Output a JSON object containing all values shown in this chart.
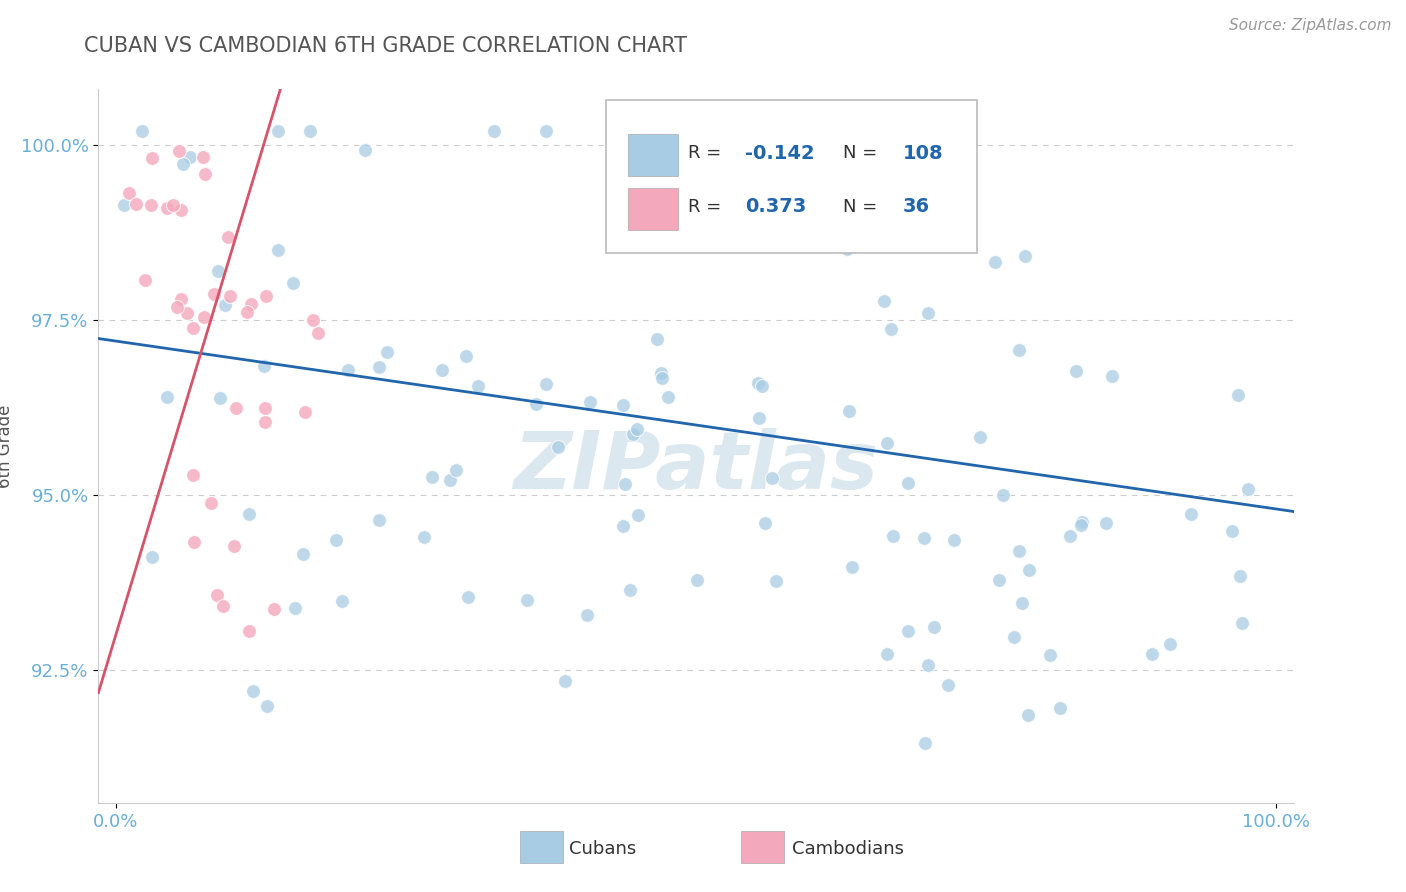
{
  "title": "CUBAN VS CAMBODIAN 6TH GRADE CORRELATION CHART",
  "source_text": "Source: ZipAtlas.com",
  "ylabel": "6th Grade",
  "y_min": 0.906,
  "y_max": 1.008,
  "x_min": -0.015,
  "x_max": 1.015,
  "cubans_R": -0.142,
  "cubans_N": 108,
  "cambodians_R": 0.373,
  "cambodians_N": 36,
  "blue_color": "#a8cce4",
  "pink_color": "#f4a8bc",
  "blue_line_color": "#2166ac",
  "pink_line_color": "#d6546a",
  "title_color": "#555555",
  "axis_color": "#6baed6",
  "grid_color": "#cccccc",
  "watermark_color": "#dce8f0",
  "legend_box_color": "#dddddd"
}
